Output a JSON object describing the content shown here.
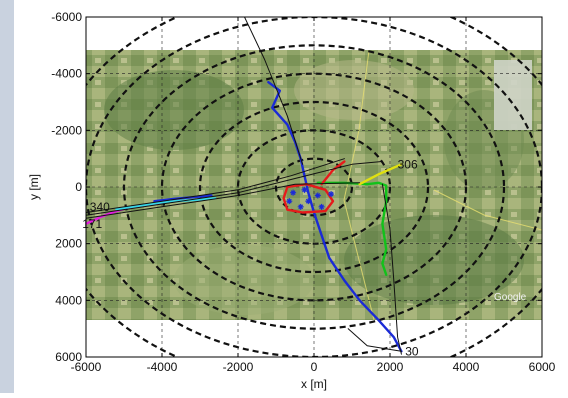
{
  "chart_data": {
    "type": "scatter",
    "xlabel": "x [m]",
    "ylabel": "y [m]",
    "xlim": [
      -6000,
      6000
    ],
    "ylim": [
      6000,
      -6000
    ],
    "y_axis_reversed": true,
    "grid": true,
    "xticks": [
      "-6000",
      "-4000",
      "-2000",
      "0",
      "2000",
      "4000",
      "6000"
    ],
    "yticks": [
      "-6000",
      "-4000",
      "-2000",
      "0",
      "2000",
      "4000",
      "6000"
    ],
    "background": "aerial satellite map",
    "range_rings_radius_m": [
      1000,
      2000,
      3000,
      4000,
      5000,
      6000,
      7000
    ],
    "annotations": [
      {
        "text": "306",
        "x": 2200,
        "y": -800
      },
      {
        "text": "340",
        "x": -5900,
        "y": 700
      },
      {
        "text": "171",
        "x": -6100,
        "y": 1300
      },
      {
        "text": "30",
        "x": 2400,
        "y": 5800
      }
    ],
    "series": [
      {
        "color": "#1b2bd6",
        "points": [
          [
            -1200,
            -3700
          ],
          [
            -900,
            -3400
          ],
          [
            -1100,
            -2800
          ],
          [
            -700,
            -2200
          ],
          [
            -500,
            -1600
          ],
          [
            -350,
            -1000
          ],
          [
            -250,
            -400
          ],
          [
            -150,
            200
          ],
          [
            0,
            900
          ],
          [
            200,
            1700
          ],
          [
            400,
            2500
          ],
          [
            800,
            3300
          ],
          [
            1200,
            4000
          ],
          [
            1700,
            4700
          ],
          [
            2100,
            5300
          ],
          [
            2300,
            5800
          ]
        ]
      },
      {
        "color": "#11c21a",
        "points": [
          [
            100,
            -150
          ],
          [
            800,
            -150
          ],
          [
            1400,
            -100
          ],
          [
            1700,
            -150
          ],
          [
            1900,
            -50
          ],
          [
            1900,
            500
          ],
          [
            1800,
            1300
          ],
          [
            1900,
            2200
          ],
          [
            1800,
            2700
          ],
          [
            1900,
            3100
          ]
        ]
      },
      {
        "color": "#e51be0",
        "points": [
          [
            -6000,
            1300
          ],
          [
            -5600,
            1050
          ],
          [
            -5200,
            850
          ],
          [
            -4800,
            700
          ],
          [
            -4400,
            620
          ],
          [
            -4000,
            550
          ]
        ]
      },
      {
        "color": "#36d8e8",
        "points": [
          [
            -5200,
            780
          ],
          [
            -4600,
            660
          ],
          [
            -4000,
            540
          ],
          [
            -3300,
            470
          ],
          [
            -2600,
            400
          ]
        ]
      },
      {
        "color": "#1b2bd6",
        "points": [
          [
            -4200,
            500
          ],
          [
            -3700,
            420
          ],
          [
            -3200,
            360
          ],
          [
            -2700,
            300
          ]
        ]
      },
      {
        "color": "#e0e010",
        "points": [
          [
            1200,
            -100
          ],
          [
            1700,
            -450
          ],
          [
            2300,
            -800
          ]
        ]
      },
      {
        "color": "#e51b1b",
        "points": [
          [
            -700,
            0
          ],
          [
            -800,
            400
          ],
          [
            -700,
            800
          ],
          [
            -300,
            900
          ],
          [
            300,
            850
          ],
          [
            500,
            500
          ],
          [
            300,
            100
          ],
          [
            -200,
            -100
          ],
          [
            -700,
            0
          ]
        ]
      },
      {
        "color": "#e51b1b",
        "points": [
          [
            200,
            -100
          ],
          [
            500,
            -600
          ],
          [
            800,
            -900
          ]
        ]
      },
      {
        "color": "#111111",
        "points": [
          [
            -1900,
            -6200
          ],
          [
            -1300,
            -4500
          ],
          [
            -700,
            -2500
          ],
          [
            -300,
            -800
          ]
        ]
      },
      {
        "color": "#111111",
        "points": [
          [
            -6000,
            1000
          ],
          [
            -4000,
            600
          ],
          [
            -2000,
            200
          ],
          [
            -500,
            -300
          ],
          [
            1000,
            -800
          ],
          [
            1800,
            -900
          ]
        ]
      },
      {
        "color": "#111111",
        "points": [
          [
            -6000,
            1100
          ],
          [
            -4000,
            700
          ],
          [
            -2000,
            300
          ],
          [
            -500,
            -100
          ],
          [
            1200,
            -150
          ]
        ]
      },
      {
        "color": "#111111",
        "points": [
          [
            -6000,
            900
          ],
          [
            -4000,
            500
          ],
          [
            -2000,
            100
          ],
          [
            -600,
            -400
          ],
          [
            800,
            -1000
          ]
        ]
      },
      {
        "color": "#111111",
        "points": [
          [
            1800,
            -100
          ],
          [
            2000,
            1500
          ],
          [
            2100,
            3300
          ],
          [
            2200,
            5300
          ],
          [
            2300,
            5900
          ]
        ]
      },
      {
        "color": "#111111",
        "points": [
          [
            900,
            5000
          ],
          [
            1400,
            5600
          ],
          [
            2300,
            5800
          ]
        ]
      }
    ],
    "markers": {
      "color": "#1b2bd6",
      "points": [
        [
          -550,
          200
        ],
        [
          -250,
          100
        ],
        [
          -150,
          500
        ],
        [
          100,
          300
        ],
        [
          -350,
          700
        ],
        [
          200,
          700
        ],
        [
          450,
          250
        ],
        [
          -650,
          500
        ]
      ]
    }
  }
}
